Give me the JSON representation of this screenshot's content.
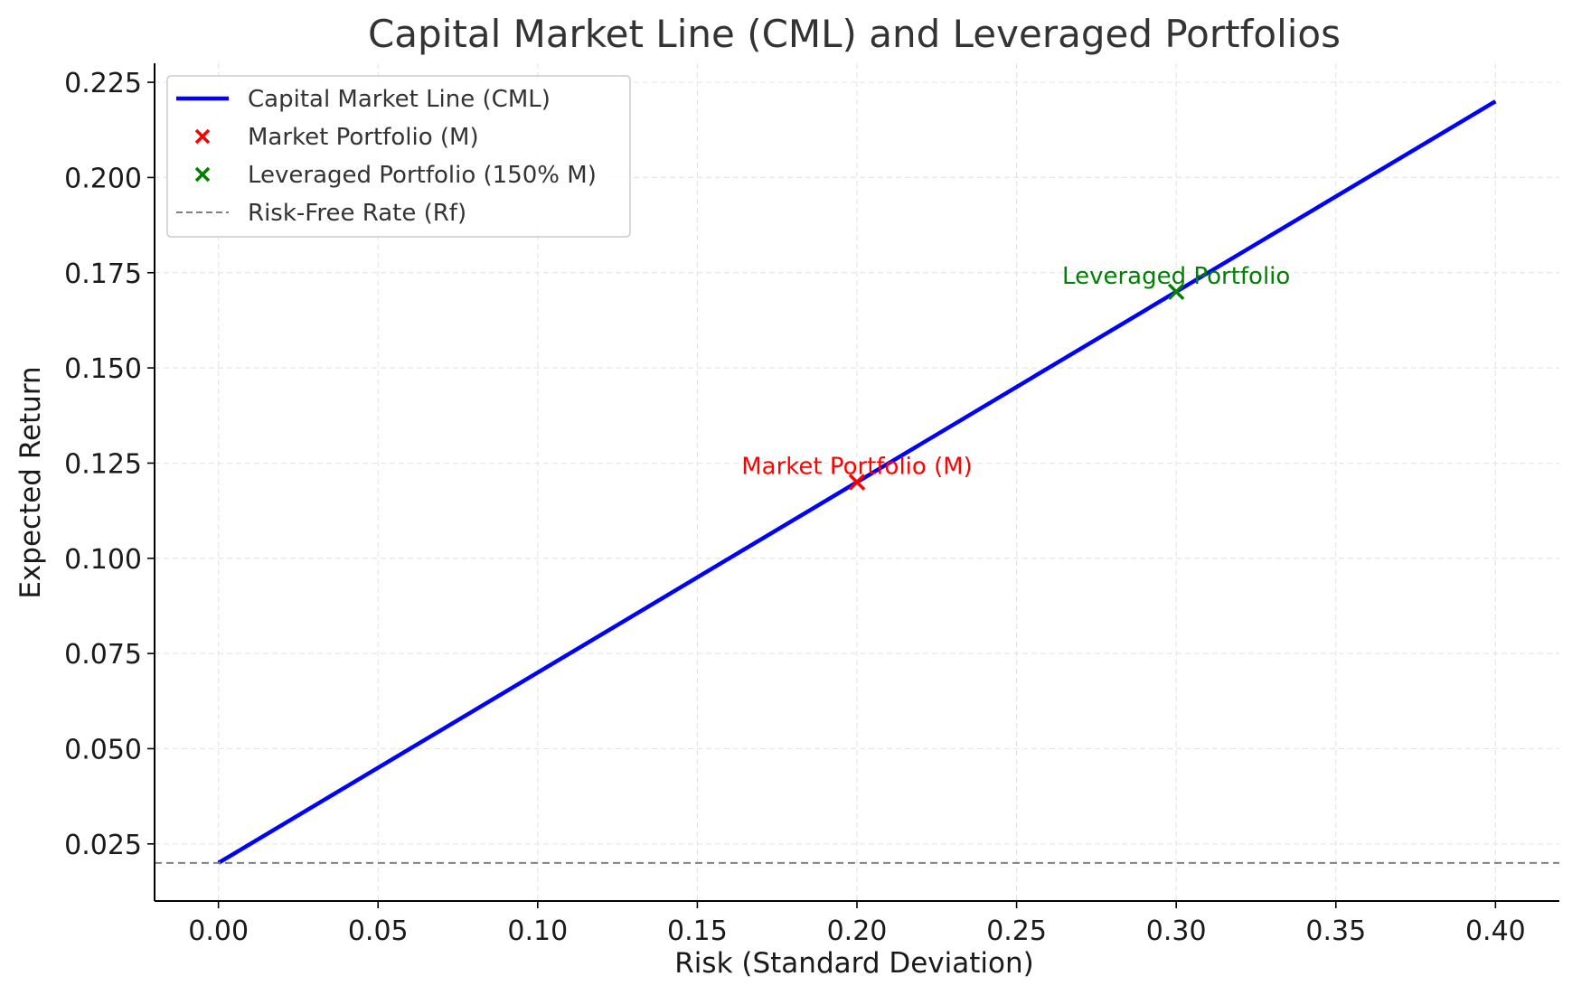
{
  "chart_data": {
    "type": "line",
    "title": "Capital Market Line (CML) and Leveraged Portfolios",
    "xlabel": "Risk (Standard Deviation)",
    "ylabel": "Expected Return",
    "xlim": [
      -0.02,
      0.42
    ],
    "ylim": [
      0.01,
      0.23
    ],
    "x_ticks": [
      0.0,
      0.05,
      0.1,
      0.15,
      0.2,
      0.25,
      0.3,
      0.35,
      0.4
    ],
    "x_tick_labels": [
      "0.00",
      "0.05",
      "0.10",
      "0.15",
      "0.20",
      "0.25",
      "0.30",
      "0.35",
      "0.40"
    ],
    "y_ticks": [
      0.025,
      0.05,
      0.075,
      0.1,
      0.125,
      0.15,
      0.175,
      0.2,
      0.225
    ],
    "y_tick_labels": [
      "0.025",
      "0.050",
      "0.075",
      "0.100",
      "0.125",
      "0.150",
      "0.175",
      "0.200",
      "0.225"
    ],
    "grid": true,
    "legend_position": "top-left",
    "series": [
      {
        "name": "Capital Market Line (CML)",
        "kind": "line",
        "color": "#0000ff",
        "x": [
          0.0,
          0.4
        ],
        "y": [
          0.02,
          0.22
        ]
      },
      {
        "name": "Market Portfolio (M)",
        "kind": "scatter",
        "marker": "x",
        "color": "#ff0000",
        "x": [
          0.2
        ],
        "y": [
          0.12
        ],
        "annotation": "Market Portfolio (M)"
      },
      {
        "name": "Leveraged Portfolio (150% M)",
        "kind": "scatter",
        "marker": "x",
        "color": "#008000",
        "x": [
          0.3
        ],
        "y": [
          0.17
        ],
        "annotation": "Leveraged Portfolio"
      },
      {
        "name": "Risk-Free Rate (Rf)",
        "kind": "hline",
        "style": "dashed",
        "color": "#808080",
        "y": 0.02
      }
    ]
  }
}
